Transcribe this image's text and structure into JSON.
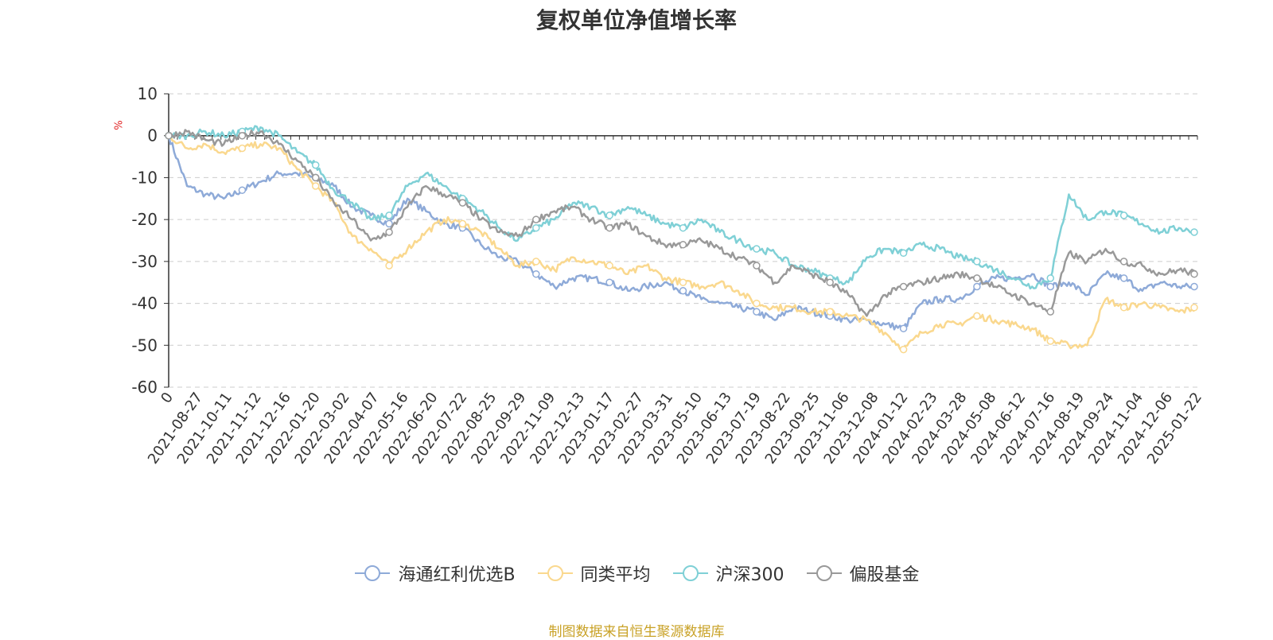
{
  "page": {
    "title": "复权单位净值增长率",
    "unit": "%",
    "source": "制图数据来自恒生聚源数据库"
  },
  "chart_data": {
    "type": "line",
    "title": "复权单位净值增长率",
    "ylabel": "%",
    "ylim": [
      -60,
      10
    ],
    "yticks": [
      10,
      0,
      -10,
      -20,
      -30,
      -40,
      -50,
      -60
    ],
    "xtick_labels": [
      "0",
      "2021-08-27",
      "2021-10-11",
      "2021-11-12",
      "2021-12-16",
      "2022-01-20",
      "2022-03-02",
      "2022-04-07",
      "2022-05-16",
      "2022-06-20",
      "2022-07-22",
      "2022-08-25",
      "2022-09-29",
      "2022-11-09",
      "2022-12-13",
      "2023-01-17",
      "2023-02-27",
      "2023-03-31",
      "2023-05-10",
      "2023-06-13",
      "2023-07-19",
      "2023-08-22",
      "2023-09-25",
      "2023-11-06",
      "2023-12-08",
      "2024-01-12",
      "2024-02-23",
      "2024-03-28",
      "2024-05-08",
      "2024-06-12",
      "2024-07-16",
      "2024-08-19",
      "2024-09-24",
      "2024-11-04",
      "2024-12-06",
      "2025-01-22"
    ],
    "grid": true,
    "legend_position": "bottom",
    "series": [
      {
        "name": "海通红利优选B",
        "color": "#8eaad8",
        "values": [
          0,
          -12,
          -14,
          -15,
          -13,
          -11,
          -9,
          -9,
          -10,
          -12,
          -17,
          -19,
          -21,
          -15,
          -18,
          -21,
          -22,
          -26,
          -29,
          -30,
          -33,
          -36,
          -34,
          -34,
          -35,
          -37,
          -36,
          -35,
          -37,
          -39,
          -40,
          -41,
          -42,
          -44,
          -41,
          -42,
          -43,
          -44,
          -44,
          -45,
          -46,
          -40,
          -39,
          -39,
          -36,
          -34,
          -34,
          -33,
          -36,
          -35,
          -38,
          -33,
          -34,
          -37,
          -35,
          -36,
          -36
        ]
      },
      {
        "name": "同类平均",
        "color": "#fad88e",
        "values": [
          0,
          -3,
          -2,
          -4,
          -3,
          -2,
          -3,
          -8,
          -12,
          -16,
          -24,
          -27,
          -31,
          -27,
          -23,
          -20,
          -21,
          -23,
          -27,
          -31,
          -30,
          -32,
          -29,
          -30,
          -31,
          -33,
          -31,
          -34,
          -35,
          -36,
          -35,
          -37,
          -40,
          -41,
          -41,
          -42,
          -42,
          -43,
          -44,
          -47,
          -51,
          -47,
          -45,
          -45,
          -43,
          -44,
          -45,
          -46,
          -49,
          -50,
          -50,
          -39,
          -41,
          -40,
          -41,
          -42,
          -41
        ]
      },
      {
        "name": "沪深300",
        "color": "#7fd0d6",
        "values": [
          0,
          0,
          1,
          0,
          1,
          2,
          0,
          -4,
          -7,
          -13,
          -16,
          -20,
          -19,
          -12,
          -9,
          -12,
          -15,
          -18,
          -22,
          -25,
          -22,
          -20,
          -16,
          -17,
          -19,
          -17,
          -19,
          -21,
          -22,
          -20,
          -23,
          -25,
          -27,
          -28,
          -31,
          -32,
          -34,
          -35,
          -29,
          -27,
          -28,
          -26,
          -27,
          -29,
          -30,
          -32,
          -34,
          -36,
          -34,
          -14,
          -20,
          -18,
          -19,
          -21,
          -23,
          -22,
          -23
        ]
      },
      {
        "name": "偏股基金",
        "color": "#999999",
        "values": [
          0,
          1,
          -1,
          -2,
          0,
          1,
          -2,
          -6,
          -10,
          -16,
          -20,
          -25,
          -23,
          -17,
          -12,
          -14,
          -16,
          -20,
          -23,
          -24,
          -20,
          -18,
          -17,
          -20,
          -22,
          -21,
          -24,
          -26,
          -26,
          -25,
          -27,
          -29,
          -31,
          -35,
          -31,
          -33,
          -35,
          -38,
          -43,
          -38,
          -36,
          -35,
          -34,
          -33,
          -34,
          -36,
          -38,
          -40,
          -42,
          -28,
          -30,
          -27,
          -30,
          -31,
          -33,
          -32,
          -33
        ]
      }
    ]
  }
}
